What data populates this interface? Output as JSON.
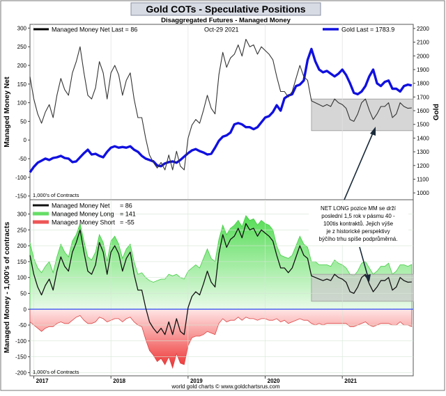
{
  "chart_data": [
    {
      "type": "line",
      "panel": "top",
      "title": "Gold COTs - Speculative Positions",
      "subtitle": "Disaggregated Futures - Managed Money",
      "date_label": "Oct-29  2021",
      "ylabel_left": "Managed Money Net",
      "ylabel_right": "Gold",
      "units_note": "1,000's of Contracts",
      "ylim_left": [
        -160,
        310
      ],
      "ylim_right": [
        950,
        2230
      ],
      "yticks_left": [
        -150,
        -100,
        -50,
        0,
        50,
        100,
        150,
        200,
        250,
        300
      ],
      "yticks_right": [
        1000,
        1100,
        1200,
        1300,
        1400,
        1500,
        1600,
        1700,
        1800,
        1900,
        2000,
        2100,
        2200
      ],
      "xlim": [
        2016.95,
        2021.92
      ],
      "series": [
        {
          "name": "Managed Money Net",
          "axis": "left",
          "legend": "Managed Money Net   Last = 86",
          "color": "#333333",
          "x": [
            2016.95,
            2017.0,
            2017.05,
            2017.1,
            2017.15,
            2017.2,
            2017.25,
            2017.3,
            2017.35,
            2017.4,
            2017.45,
            2017.5,
            2017.55,
            2017.6,
            2017.65,
            2017.7,
            2017.75,
            2017.8,
            2017.85,
            2017.9,
            2017.95,
            2018.0,
            2018.05,
            2018.1,
            2018.15,
            2018.2,
            2018.25,
            2018.3,
            2018.35,
            2018.4,
            2018.45,
            2018.5,
            2018.55,
            2018.6,
            2018.65,
            2018.7,
            2018.75,
            2018.8,
            2018.85,
            2018.9,
            2018.95,
            2019.0,
            2019.05,
            2019.1,
            2019.15,
            2019.2,
            2019.25,
            2019.3,
            2019.35,
            2019.4,
            2019.45,
            2019.5,
            2019.55,
            2019.6,
            2019.65,
            2019.7,
            2019.75,
            2019.8,
            2019.85,
            2019.9,
            2019.95,
            2020.0,
            2020.05,
            2020.1,
            2020.15,
            2020.2,
            2020.25,
            2020.3,
            2020.35,
            2020.4,
            2020.45,
            2020.5,
            2020.55,
            2020.6,
            2020.65,
            2020.7,
            2020.75,
            2020.8,
            2020.85,
            2020.9,
            2020.95,
            2021.0,
            2021.05,
            2021.1,
            2021.15,
            2021.2,
            2021.25,
            2021.3,
            2021.35,
            2021.4,
            2021.45,
            2021.5,
            2021.55,
            2021.6,
            2021.65,
            2021.7,
            2021.75,
            2021.8,
            2021.85,
            2021.9
          ],
          "values": [
            170,
            110,
            70,
            45,
            75,
            95,
            60,
            120,
            165,
            135,
            120,
            180,
            210,
            250,
            180,
            120,
            110,
            140,
            210,
            180,
            110,
            180,
            200,
            175,
            120,
            160,
            180,
            110,
            60,
            60,
            5,
            -40,
            -60,
            -75,
            -60,
            -80,
            -40,
            -80,
            -30,
            -70,
            -80,
            5,
            40,
            55,
            45,
            80,
            120,
            85,
            70,
            175,
            235,
            195,
            220,
            230,
            255,
            225,
            270,
            250,
            255,
            230,
            250,
            240,
            230,
            215,
            170,
            130,
            130,
            115,
            130,
            165,
            200,
            170,
            160,
            105,
            100,
            95,
            90,
            95,
            90,
            110,
            100,
            95,
            85,
            55,
            50,
            70,
            100,
            110,
            80,
            55,
            70,
            90,
            90,
            100,
            60,
            70,
            100,
            90,
            85,
            86
          ]
        },
        {
          "name": "Gold",
          "axis": "right",
          "legend": "Gold  Last = 1783.9",
          "color": "#1010e0",
          "x": [
            2016.95,
            2017.0,
            2017.05,
            2017.1,
            2017.15,
            2017.2,
            2017.25,
            2017.3,
            2017.35,
            2017.4,
            2017.45,
            2017.5,
            2017.55,
            2017.6,
            2017.65,
            2017.7,
            2017.75,
            2017.8,
            2017.85,
            2017.9,
            2017.95,
            2018.0,
            2018.05,
            2018.1,
            2018.15,
            2018.2,
            2018.25,
            2018.3,
            2018.35,
            2018.4,
            2018.45,
            2018.5,
            2018.55,
            2018.6,
            2018.65,
            2018.7,
            2018.75,
            2018.8,
            2018.85,
            2018.9,
            2018.95,
            2019.0,
            2019.05,
            2019.1,
            2019.15,
            2019.2,
            2019.25,
            2019.3,
            2019.35,
            2019.4,
            2019.45,
            2019.5,
            2019.55,
            2019.6,
            2019.65,
            2019.7,
            2019.75,
            2019.8,
            2019.85,
            2019.9,
            2019.95,
            2020.0,
            2020.05,
            2020.1,
            2020.15,
            2020.2,
            2020.25,
            2020.3,
            2020.35,
            2020.4,
            2020.45,
            2020.5,
            2020.55,
            2020.6,
            2020.65,
            2020.7,
            2020.75,
            2020.8,
            2020.85,
            2020.9,
            2020.95,
            2021.0,
            2021.05,
            2021.1,
            2021.15,
            2021.2,
            2021.25,
            2021.3,
            2021.35,
            2021.4,
            2021.45,
            2021.5,
            2021.55,
            2021.6,
            2021.65,
            2021.7,
            2021.75,
            2021.8,
            2021.85,
            2021.9
          ],
          "values": [
            1150,
            1190,
            1220,
            1235,
            1250,
            1240,
            1255,
            1260,
            1270,
            1255,
            1250,
            1225,
            1230,
            1260,
            1290,
            1315,
            1280,
            1285,
            1270,
            1260,
            1300,
            1330,
            1340,
            1330,
            1335,
            1330,
            1340,
            1315,
            1300,
            1270,
            1250,
            1240,
            1230,
            1200,
            1195,
            1215,
            1225,
            1230,
            1220,
            1240,
            1265,
            1290,
            1310,
            1320,
            1305,
            1295,
            1280,
            1285,
            1330,
            1380,
            1410,
            1420,
            1440,
            1500,
            1510,
            1500,
            1480,
            1480,
            1465,
            1480,
            1515,
            1550,
            1560,
            1590,
            1640,
            1600,
            1690,
            1710,
            1720,
            1780,
            1790,
            1820,
            1970,
            2050,
            1960,
            1900,
            1880,
            1890,
            1870,
            1850,
            1870,
            1900,
            1860,
            1800,
            1730,
            1720,
            1740,
            1780,
            1850,
            1900,
            1800,
            1780,
            1810,
            1820,
            1760,
            1760,
            1740,
            1780,
            1790,
            1784
          ]
        }
      ],
      "annotations": {
        "box": {
          "x0": 2020.6,
          "x1": 2021.92,
          "y0": 25,
          "y1": 110
        },
        "box_note": "grey box marking last 1.5 years"
      }
    },
    {
      "type": "area",
      "panel": "bottom",
      "ylabel": "Managed Money - 1,000's of contracts",
      "units_note": "1,000's of Contracts",
      "ylim": [
        -210,
        345
      ],
      "yticks": [
        -200,
        -150,
        -100,
        -50,
        0,
        50,
        100,
        150,
        200,
        250,
        300
      ],
      "xlim": [
        2016.95,
        2021.92
      ],
      "xticks": [
        {
          "x": 2017.0,
          "label": "2017"
        },
        {
          "x": 2018.0,
          "label": "2018"
        },
        {
          "x": 2019.0,
          "label": "2019"
        },
        {
          "x": 2020.0,
          "label": "2020"
        },
        {
          "x": 2021.0,
          "label": "2021"
        }
      ],
      "legend": [
        {
          "name": "Managed Money Net",
          "value_text": "=  86",
          "color": "#111111"
        },
        {
          "name": "Managed Money Long",
          "value_text": "= 141",
          "color": "#66dd66"
        },
        {
          "name": "Managed Money Short",
          "value_text": "= -55",
          "color": "#ee5555"
        }
      ],
      "x": [
        2016.95,
        2017.0,
        2017.05,
        2017.1,
        2017.15,
        2017.2,
        2017.25,
        2017.3,
        2017.35,
        2017.4,
        2017.45,
        2017.5,
        2017.55,
        2017.6,
        2017.65,
        2017.7,
        2017.75,
        2017.8,
        2017.85,
        2017.9,
        2017.95,
        2018.0,
        2018.05,
        2018.1,
        2018.15,
        2018.2,
        2018.25,
        2018.3,
        2018.35,
        2018.4,
        2018.45,
        2018.5,
        2018.55,
        2018.6,
        2018.65,
        2018.7,
        2018.75,
        2018.8,
        2018.85,
        2018.9,
        2018.95,
        2019.0,
        2019.05,
        2019.1,
        2019.15,
        2019.2,
        2019.25,
        2019.3,
        2019.35,
        2019.4,
        2019.45,
        2019.5,
        2019.55,
        2019.6,
        2019.65,
        2019.7,
        2019.75,
        2019.8,
        2019.85,
        2019.9,
        2019.95,
        2020.0,
        2020.05,
        2020.1,
        2020.15,
        2020.2,
        2020.25,
        2020.3,
        2020.35,
        2020.4,
        2020.45,
        2020.5,
        2020.55,
        2020.6,
        2020.65,
        2020.7,
        2020.75,
        2020.8,
        2020.85,
        2020.9,
        2020.95,
        2021.0,
        2021.05,
        2021.1,
        2021.15,
        2021.2,
        2021.25,
        2021.3,
        2021.35,
        2021.4,
        2021.45,
        2021.5,
        2021.55,
        2021.6,
        2021.65,
        2021.7,
        2021.75,
        2021.8,
        2021.85,
        2021.9
      ],
      "long": [
        210,
        160,
        130,
        115,
        135,
        150,
        115,
        165,
        205,
        180,
        165,
        215,
        235,
        270,
        215,
        165,
        155,
        180,
        235,
        210,
        150,
        215,
        230,
        205,
        160,
        190,
        205,
        150,
        110,
        115,
        100,
        90,
        85,
        90,
        95,
        95,
        110,
        105,
        110,
        100,
        95,
        120,
        130,
        140,
        130,
        160,
        190,
        160,
        150,
        220,
        265,
        235,
        255,
        265,
        280,
        260,
        295,
        280,
        285,
        265,
        280,
        270,
        265,
        250,
        200,
        170,
        165,
        160,
        170,
        200,
        230,
        205,
        195,
        150,
        150,
        140,
        140,
        140,
        135,
        155,
        145,
        140,
        130,
        110,
        105,
        120,
        145,
        150,
        130,
        110,
        120,
        135,
        135,
        145,
        110,
        120,
        140,
        140,
        135,
        141
      ],
      "short": [
        -40,
        -50,
        -60,
        -70,
        -60,
        -55,
        -55,
        -45,
        -40,
        -45,
        -45,
        -35,
        -25,
        -20,
        -35,
        -45,
        -45,
        -40,
        -25,
        -30,
        -40,
        -35,
        -30,
        -30,
        -40,
        -30,
        -25,
        -40,
        -50,
        -55,
        -95,
        -130,
        -145,
        -165,
        -155,
        -175,
        -150,
        -185,
        -140,
        -170,
        -175,
        -115,
        -90,
        -85,
        -85,
        -80,
        -70,
        -75,
        -80,
        -45,
        -30,
        -40,
        -35,
        -35,
        -25,
        -35,
        -25,
        -30,
        -30,
        -35,
        -30,
        -30,
        -35,
        -35,
        -30,
        -40,
        -35,
        -45,
        -40,
        -35,
        -30,
        -35,
        -35,
        -45,
        -50,
        -45,
        -50,
        -45,
        -45,
        -45,
        -45,
        -45,
        -45,
        -55,
        -55,
        -50,
        -45,
        -40,
        -50,
        -55,
        -50,
        -45,
        -45,
        -45,
        -50,
        -50,
        -40,
        -50,
        -50,
        -55
      ],
      "net": [
        170,
        110,
        70,
        45,
        75,
        95,
        60,
        120,
        165,
        135,
        120,
        180,
        210,
        250,
        180,
        120,
        110,
        140,
        210,
        180,
        110,
        180,
        200,
        175,
        120,
        160,
        180,
        110,
        60,
        60,
        5,
        -40,
        -60,
        -75,
        -60,
        -80,
        -40,
        -80,
        -30,
        -70,
        -80,
        5,
        40,
        55,
        45,
        80,
        120,
        85,
        70,
        175,
        235,
        195,
        220,
        230,
        255,
        225,
        270,
        250,
        255,
        230,
        250,
        240,
        230,
        215,
        170,
        130,
        130,
        115,
        130,
        165,
        200,
        170,
        160,
        105,
        100,
        95,
        90,
        95,
        90,
        110,
        100,
        95,
        85,
        55,
        50,
        70,
        100,
        110,
        80,
        55,
        70,
        90,
        90,
        100,
        60,
        70,
        100,
        90,
        85,
        86
      ],
      "annotation_box": {
        "x0": 2020.6,
        "x1": 2021.92,
        "y0": 25,
        "y1": 110
      }
    }
  ],
  "callout_text": "NET LONG pozice MM se drží poslední 1,5 rok v pásmu 40 - 100tis kontraktů. Jejich výše je z historické perspektivy býčího trhu spíše podprůměrná.",
  "footer": "world gold charts © www.goldchartsrus.com"
}
